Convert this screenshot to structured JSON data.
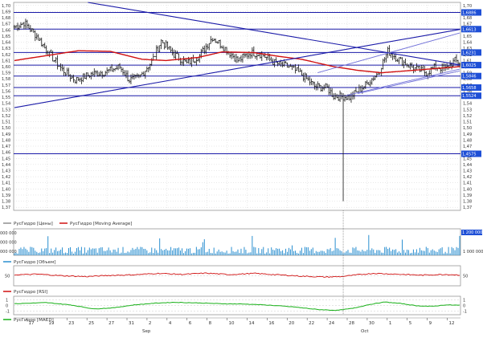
{
  "colors": {
    "price_bars": "#111111",
    "moving_average": "#d01010",
    "trendline": "#1a1aa8",
    "channel": "#7070d8",
    "level_label_bg": "#1e4fd6",
    "volume": "#2a8fd0",
    "rsi": "#d01010",
    "macd": "#18b018",
    "grid": "#c8c8c8",
    "crosshair": "#444444"
  },
  "chart_data": [
    {
      "type": "candlestick",
      "title": "",
      "legend": [
        "РусГидро [Цены]",
        "РусГидро [Moving Average]"
      ],
      "ylim": [
        1.365,
        1.705
      ],
      "y_ticks": [
        "1,70",
        "1,69",
        "1,68",
        "1,67",
        "1,66",
        "1,65",
        "1,64",
        "1,63",
        "1,62",
        "1,61",
        "1,60",
        "1,59",
        "1,58",
        "1,57",
        "1,56",
        "1,55",
        "1,54",
        "1,53",
        "1,52",
        "1,51",
        "1,50",
        "1,49",
        "1,48",
        "1,47",
        "1,46",
        "1,45",
        "1,44",
        "1,43",
        "1,42",
        "1,41",
        "1,40",
        "1,39",
        "1,38",
        "1,37"
      ],
      "x_ticks": [
        "17",
        "19",
        "23",
        "25",
        "27",
        "31",
        "2",
        "4",
        "6",
        "8",
        "10",
        "14",
        "16",
        "20",
        "22",
        "24",
        "28",
        "30",
        "1",
        "5",
        "9",
        "12"
      ],
      "month_labels": [
        "Sep",
        "Oct"
      ],
      "horizontal_levels": [
        1.6886,
        1.6613,
        1.6231,
        1.6025,
        1.5846,
        1.5658,
        1.5524,
        1.4575
      ],
      "level_labels": [
        "1,6886",
        "1,6613",
        "1,6231",
        "1,6025",
        "1,5846",
        "1,5658",
        "1,5524",
        "1,4575"
      ],
      "price_anchors": [
        [
          0,
          1.665
        ],
        [
          6,
          1.672
        ],
        [
          14,
          1.65
        ],
        [
          22,
          1.62
        ],
        [
          30,
          1.595
        ],
        [
          38,
          1.578
        ],
        [
          48,
          1.588
        ],
        [
          58,
          1.592
        ],
        [
          66,
          1.6
        ],
        [
          72,
          1.578
        ],
        [
          78,
          1.582
        ],
        [
          86,
          1.608
        ],
        [
          92,
          1.642
        ],
        [
          100,
          1.62
        ],
        [
          108,
          1.605
        ],
        [
          116,
          1.618
        ],
        [
          124,
          1.648
        ],
        [
          132,
          1.63
        ],
        [
          140,
          1.61
        ],
        [
          148,
          1.623
        ],
        [
          155,
          1.62
        ],
        [
          164,
          1.605
        ],
        [
          172,
          1.6
        ],
        [
          180,
          1.587
        ],
        [
          188,
          1.568
        ],
        [
          196,
          1.565
        ],
        [
          200,
          1.552
        ],
        [
          210,
          1.55
        ],
        [
          220,
          1.57
        ],
        [
          228,
          1.59
        ],
        [
          234,
          1.625
        ],
        [
          242,
          1.61
        ],
        [
          250,
          1.598
        ],
        [
          258,
          1.59
        ],
        [
          264,
          1.6
        ],
        [
          270,
          1.596
        ],
        [
          276,
          1.61
        ],
        [
          279,
          1.606
        ]
      ],
      "spike": {
        "bar": 206,
        "low": 1.38
      },
      "ma_anchors": [
        [
          0,
          1.61
        ],
        [
          20,
          1.618
        ],
        [
          40,
          1.626
        ],
        [
          60,
          1.625
        ],
        [
          80,
          1.612
        ],
        [
          95,
          1.61
        ],
        [
          115,
          1.615
        ],
        [
          130,
          1.624
        ],
        [
          150,
          1.623
        ],
        [
          165,
          1.617
        ],
        [
          180,
          1.612
        ],
        [
          200,
          1.6
        ],
        [
          215,
          1.594
        ],
        [
          230,
          1.59
        ],
        [
          250,
          1.594
        ],
        [
          279,
          1.6
        ]
      ],
      "trendlines": [
        {
          "from": [
            46,
            1.705
          ],
          "to": [
            279,
            1.603
          ]
        },
        {
          "from": [
            0,
            1.533
          ],
          "to": [
            279,
            1.6608
          ]
        },
        {
          "from": [
            190,
            1.59
          ],
          "to": [
            279,
            1.655
          ]
        },
        {
          "from": [
            208,
            1.553
          ],
          "to": [
            279,
            1.596
          ]
        },
        {
          "from": [
            215,
            1.556
          ],
          "to": [
            279,
            1.593
          ]
        }
      ]
    },
    {
      "type": "bar",
      "legend": [
        "РусГидро [Объем]"
      ],
      "y_ticks": [
        "000 000",
        "000 000",
        "000 000"
      ],
      "y_ticks_right": [
        "1 000 000"
      ],
      "last_value_label": "1 200 000",
      "ylim": [
        0,
        3000000
      ],
      "typical_volume": 550000
    },
    {
      "type": "line",
      "legend": [
        "РусГидро [RSI]"
      ],
      "y_ticks": [
        "50"
      ],
      "y_ticks_right": [
        "50"
      ],
      "ylim": [
        0,
        100
      ],
      "anchors": [
        [
          0,
          55
        ],
        [
          15,
          58
        ],
        [
          30,
          50
        ],
        [
          45,
          46
        ],
        [
          60,
          52
        ],
        [
          75,
          55
        ],
        [
          90,
          62
        ],
        [
          105,
          57
        ],
        [
          120,
          63
        ],
        [
          135,
          56
        ],
        [
          150,
          62
        ],
        [
          165,
          55
        ],
        [
          180,
          48
        ],
        [
          195,
          44
        ],
        [
          205,
          46
        ],
        [
          215,
          55
        ],
        [
          225,
          62
        ],
        [
          240,
          58
        ],
        [
          255,
          53
        ],
        [
          270,
          57
        ],
        [
          279,
          54
        ]
      ]
    },
    {
      "type": "line",
      "legend": [
        "РусГидро [MACD]"
      ],
      "y_ticks": [
        "1",
        "0",
        "-1"
      ],
      "y_ticks_right": [
        "1",
        "0",
        "-1"
      ],
      "ylim": [
        -1.6,
        1.6
      ],
      "anchors": [
        [
          0,
          0.3
        ],
        [
          20,
          0.5
        ],
        [
          35,
          0.1
        ],
        [
          50,
          -0.6
        ],
        [
          62,
          -0.4
        ],
        [
          75,
          0.1
        ],
        [
          88,
          0.4
        ],
        [
          100,
          0.55
        ],
        [
          115,
          0.45
        ],
        [
          130,
          0.3
        ],
        [
          145,
          0.25
        ],
        [
          160,
          0.05
        ],
        [
          175,
          -0.25
        ],
        [
          190,
          -0.7
        ],
        [
          202,
          -0.85
        ],
        [
          212,
          -0.5
        ],
        [
          222,
          0.15
        ],
        [
          232,
          0.6
        ],
        [
          242,
          0.35
        ],
        [
          252,
          -0.05
        ],
        [
          262,
          -0.15
        ],
        [
          270,
          0.1
        ],
        [
          279,
          0.05
        ]
      ]
    }
  ]
}
